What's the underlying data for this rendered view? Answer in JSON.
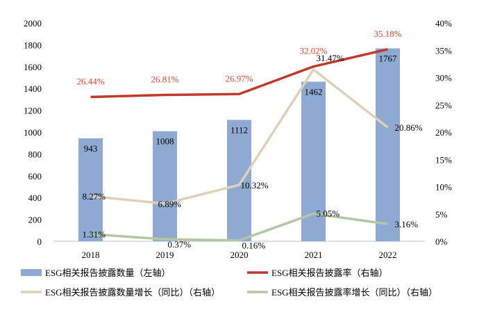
{
  "chart_data": {
    "type": "bar",
    "categories": [
      "2018",
      "2019",
      "2020",
      "2021",
      "2022"
    ],
    "y_left": {
      "ticks": [
        "0",
        "200",
        "400",
        "600",
        "800",
        "1000",
        "1200",
        "1400",
        "1600",
        "1800",
        "2000"
      ],
      "range": [
        0,
        2000
      ]
    },
    "y_right": {
      "ticks": [
        "0%",
        "5%",
        "10%",
        "15%",
        "20%",
        "25%",
        "30%",
        "35%",
        "40%"
      ],
      "range": [
        0,
        40
      ]
    },
    "series": [
      {
        "name": "ESG相关报告披露数量（左轴）",
        "type": "bar",
        "axis": "left",
        "color": "#8eaad2",
        "values": [
          943,
          1008,
          1112,
          1462,
          1767
        ],
        "labels": [
          "943",
          "1008",
          "1112",
          "1462",
          "1767"
        ]
      },
      {
        "name": "ESG相关报告披露率（右轴）",
        "type": "line",
        "axis": "right",
        "color": "#c0392b",
        "label_color": "#e8412b",
        "values": [
          26.44,
          26.81,
          26.97,
          32.02,
          35.18
        ],
        "labels": [
          "26.44%",
          "26.81%",
          "26.97%",
          "32.02%",
          "35.18%"
        ]
      },
      {
        "name": "ESG相关报告披露数量增长（同比）（右轴）",
        "type": "line",
        "axis": "right",
        "color": "#ddd2b8",
        "values": [
          8.27,
          6.89,
          10.32,
          31.47,
          20.86
        ],
        "labels": [
          "8.27%",
          "6.89%",
          "10.32%",
          "31.47%",
          "20.86%"
        ]
      },
      {
        "name": "ESG相关报告披露率增长（同比）（右轴）",
        "type": "line",
        "axis": "right",
        "color": "#b4c7a4",
        "values": [
          1.31,
          0.37,
          0.16,
          5.05,
          3.16
        ],
        "labels": [
          "1.31%",
          "0.37%",
          "0.16%",
          "5.05%",
          "3.16%"
        ]
      }
    ],
    "grid": false,
    "legend_position": "bottom"
  }
}
